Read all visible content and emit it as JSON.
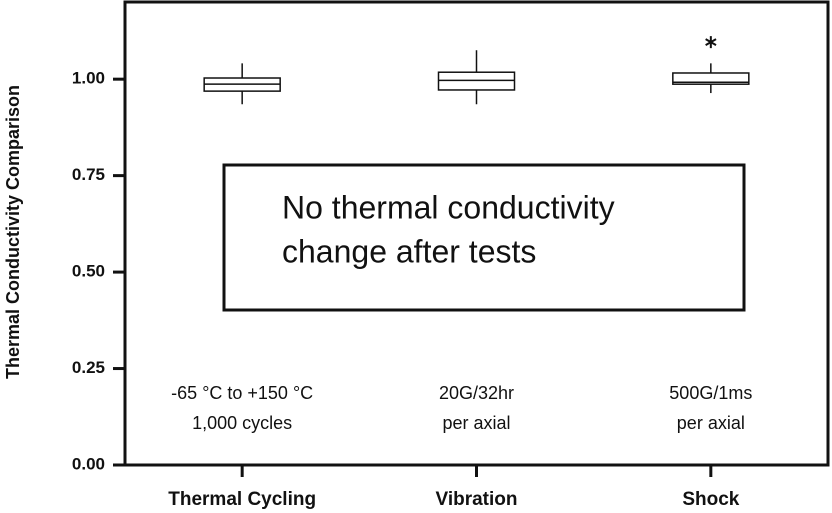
{
  "chart_data": {
    "type": "box",
    "y_label": "Thermal Conductivity Comparison",
    "categories": [
      "Thermal Cycling",
      "Vibration",
      "Shock"
    ],
    "boxes": [
      {
        "whisker_low": 0.935,
        "q1": 0.969,
        "median": 0.987,
        "q3": 1.003,
        "whisker_high": 1.041,
        "outliers": []
      },
      {
        "whisker_low": 0.935,
        "q1": 0.972,
        "median": 0.997,
        "q3": 1.018,
        "whisker_high": 1.075,
        "outliers": []
      },
      {
        "whisker_low": 0.964,
        "q1": 0.987,
        "median": 0.992,
        "q3": 1.016,
        "whisker_high": 1.041,
        "outliers": [
          1.096
        ]
      }
    ],
    "condition_labels": [
      [
        "-65 °C to +150 °C",
        "1,000 cycles"
      ],
      [
        "20G/32hr",
        "per axial"
      ],
      [
        "500G/1ms",
        "per axial"
      ]
    ],
    "annotation": [
      "No thermal conductivity",
      "change after tests"
    ],
    "ylim": [
      0,
      1.2
    ],
    "yticks": [
      {
        "value": 0,
        "label": "0.00"
      },
      {
        "value": 0.25,
        "label": "0.25"
      },
      {
        "value": 0.5,
        "label": "0.50"
      },
      {
        "value": 0.75,
        "label": "0.75"
      },
      {
        "value": 1,
        "label": "1.00"
      }
    ],
    "color": "#ffffff"
  }
}
